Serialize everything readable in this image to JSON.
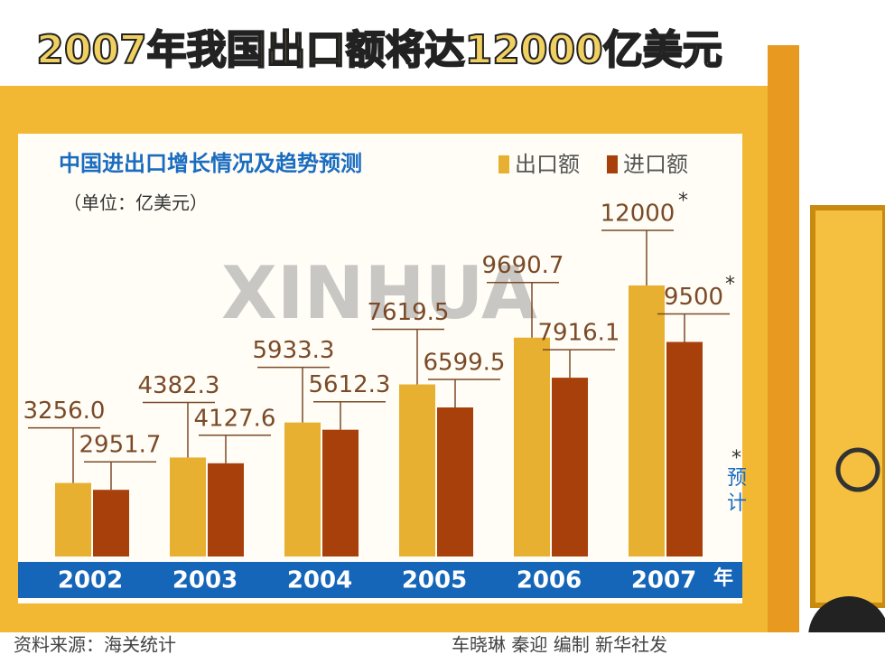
{
  "chart_data": {
    "type": "bar",
    "title": "2007年我国出口额将达12000亿美元",
    "subtitle": "中国进出口增长情况及趋势预测",
    "unit": "（单位：亿美元）",
    "categories": [
      "2002",
      "2003",
      "2004",
      "2005",
      "2006",
      "2007"
    ],
    "x_unit": "年",
    "series": [
      {
        "name": "出口额",
        "color": "#e8b030",
        "values": [
          3256.0,
          4382.3,
          5933.3,
          7619.5,
          9690.7,
          12000
        ],
        "value_labels": [
          "3256.0",
          "4382.3",
          "5933.3",
          "7619.5",
          "9690.7",
          "12000"
        ]
      },
      {
        "name": "进口额",
        "color": "#a8400c",
        "values": [
          2951.7,
          4127.6,
          5612.3,
          6599.5,
          7916.1,
          9500
        ],
        "value_labels": [
          "2951.7",
          "4127.6",
          "5612.3",
          "6599.5",
          "7916.1",
          "9500"
        ]
      }
    ],
    "forecast_mark": "*",
    "forecast_note": "预计",
    "source": "资料来源：海关统计",
    "credit": "车晓琳 秦迎 编制 新华社发",
    "watermark": "XINHUA"
  }
}
